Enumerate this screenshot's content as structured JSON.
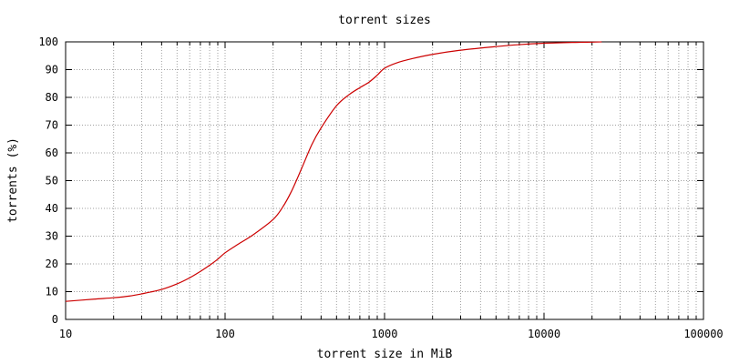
{
  "chart_data": {
    "type": "line",
    "title": "torrent sizes",
    "xlabel": "torrent size in MiB",
    "ylabel": "torrents (%)",
    "xscale": "log",
    "xlim": [
      10,
      100000
    ],
    "ylim": [
      0,
      100
    ],
    "grid": true,
    "x_ticks": [
      "10",
      "100",
      "1000",
      "10000",
      "100000"
    ],
    "y_ticks": [
      "0",
      "10",
      "20",
      "30",
      "40",
      "50",
      "60",
      "70",
      "80",
      "90",
      "100"
    ],
    "series": [
      {
        "color": "#cc0000",
        "x": [
          10,
          15,
          20,
          25,
          30,
          40,
          50,
          60,
          70,
          80,
          90,
          100,
          120,
          150,
          200,
          230,
          260,
          300,
          350,
          400,
          500,
          600,
          700,
          800,
          900,
          1000,
          1200,
          1500,
          2000,
          3000,
          5000,
          7000,
          10000,
          15000,
          20000,
          23000
        ],
        "y": [
          6.5,
          7.3,
          7.8,
          8.4,
          9.2,
          10.8,
          12.8,
          15.0,
          17.3,
          19.5,
          21.7,
          24.0,
          27.0,
          30.5,
          36.0,
          40.5,
          46.0,
          54.0,
          63.0,
          69.0,
          77.0,
          81.0,
          83.5,
          85.5,
          88.0,
          90.5,
          92.5,
          94.0,
          95.5,
          97.0,
          98.3,
          99.0,
          99.5,
          99.8,
          99.9,
          100.0
        ]
      }
    ]
  }
}
